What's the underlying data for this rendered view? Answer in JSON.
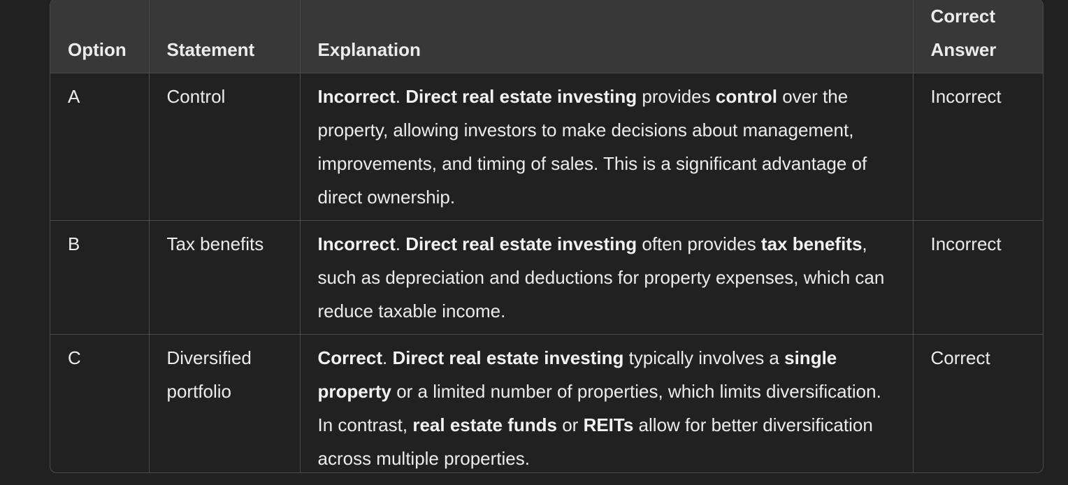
{
  "table": {
    "headers": {
      "option": "Option",
      "statement": "Statement",
      "explanation": "Explanation",
      "correct_answer_line1": "Correct",
      "correct_answer_line2": "Answer"
    },
    "rows": [
      {
        "option": "A",
        "statement": "Control",
        "explanation": {
          "verdict": "Incorrect",
          "sep1": ". ",
          "subject": "Direct real estate investing",
          "t1": " provides ",
          "term1": "control",
          "t2": " over the property, allowing investors to make decisions about management, improvements, and timing of sales. This is a significant advantage of direct ownership."
        },
        "answer": "Incorrect"
      },
      {
        "option": "B",
        "statement": "Tax benefits",
        "explanation": {
          "verdict": "Incorrect",
          "sep1": ". ",
          "subject": "Direct real estate investing",
          "t1": " often provides ",
          "term1": "tax benefits",
          "t2": ", such as depreciation and deductions for property expenses, which can reduce taxable income."
        },
        "answer": "Incorrect"
      },
      {
        "option": "C",
        "statement": "Diversified portfolio",
        "explanation": {
          "verdict": "Correct",
          "sep1": ". ",
          "subject": "Direct real estate investing",
          "t1": " typically involves a ",
          "term1": "single property",
          "t2": " or a limited number of properties, which limits diversification. In contrast, ",
          "term2": "real estate funds",
          "t3": " or ",
          "term3": "REITs",
          "t4": " allow for better diversification across multiple properties."
        },
        "answer": "Correct"
      }
    ]
  }
}
